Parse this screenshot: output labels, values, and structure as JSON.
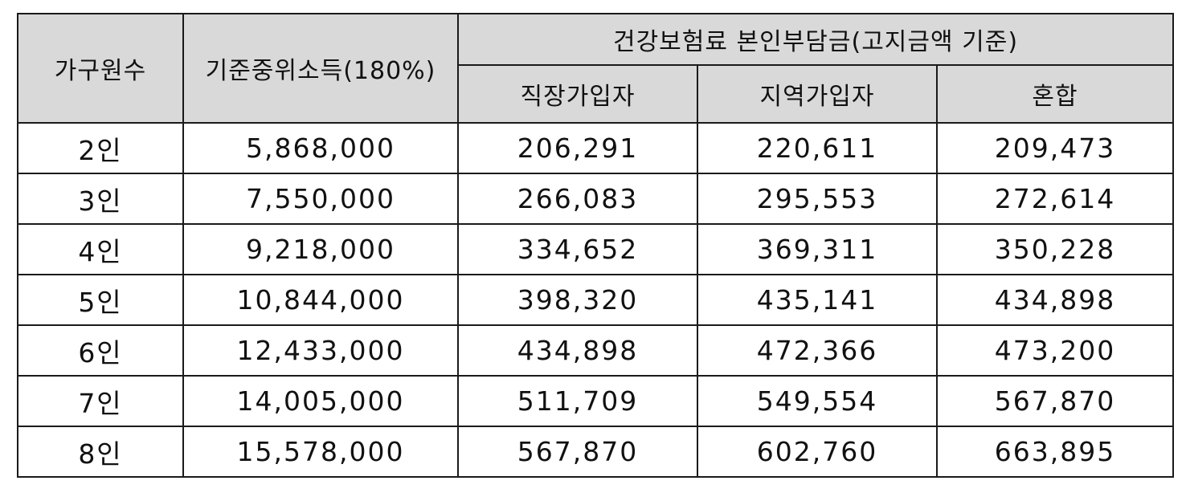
{
  "table": {
    "headers": {
      "household_size": "가구원수",
      "median_income": "기준중위소득(180%)",
      "premium_group": "건강보험료 본인부담금(고지금액 기준)",
      "employee": "직장가입자",
      "regional": "지역가입자",
      "mixed": "혼합"
    },
    "rows": [
      {
        "household": "2인",
        "income": "5,868,000",
        "employee": "206,291",
        "regional": "220,611",
        "mixed": "209,473"
      },
      {
        "household": "3인",
        "income": "7,550,000",
        "employee": "266,083",
        "regional": "295,553",
        "mixed": "272,614"
      },
      {
        "household": "4인",
        "income": "9,218,000",
        "employee": "334,652",
        "regional": "369,311",
        "mixed": "350,228"
      },
      {
        "household": "5인",
        "income": "10,844,000",
        "employee": "398,320",
        "regional": "435,141",
        "mixed": "434,898"
      },
      {
        "household": "6인",
        "income": "12,433,000",
        "employee": "434,898",
        "regional": "472,366",
        "mixed": "473,200"
      },
      {
        "household": "7인",
        "income": "14,005,000",
        "employee": "511,709",
        "regional": "549,554",
        "mixed": "567,870"
      },
      {
        "household": "8인",
        "income": "15,578,000",
        "employee": "567,870",
        "regional": "602,760",
        "mixed": "663,895"
      }
    ]
  }
}
